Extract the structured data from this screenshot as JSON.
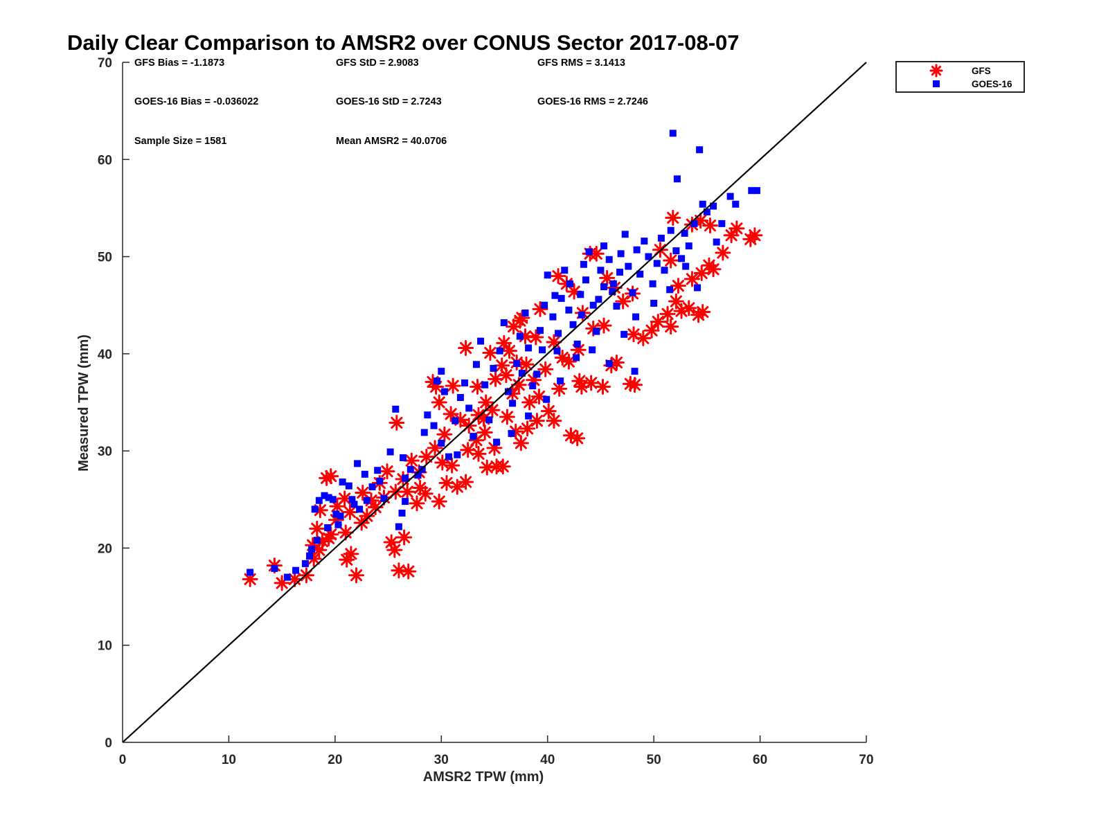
{
  "chart_data": {
    "type": "scatter",
    "title": "Daily Clear Comparison to AMSR2 over CONUS Sector 2017-08-07",
    "xlabel": "AMSR2 TPW (mm)",
    "ylabel": "Measured TPW (mm)",
    "xlim": [
      0,
      70
    ],
    "ylim": [
      0,
      70
    ],
    "xticks": [
      "0",
      "10",
      "20",
      "30",
      "40",
      "50",
      "60",
      "70"
    ],
    "yticks": [
      "0",
      "10",
      "20",
      "30",
      "40",
      "50",
      "60",
      "70"
    ],
    "grid": false,
    "legend_position": "outside-top-right",
    "reference_line": {
      "from": [
        0,
        0
      ],
      "to": [
        70,
        70
      ],
      "color": "#000000"
    },
    "stats": {
      "gfs_bias": "GFS Bias = -1.1873",
      "gfs_std": "GFS StD = 2.9083",
      "gfs_rms": "GFS RMS = 3.1413",
      "goes_bias": "GOES-16 Bias = -0.036022",
      "goes_std": "GOES-16 StD = 2.7243",
      "goes_rms": "GOES-16 RMS = 2.7246",
      "sample_size": "Sample Size = 1581",
      "mean_amsr2": "Mean AMSR2 = 40.0706"
    },
    "series": [
      {
        "name": "GFS",
        "marker": "asterisk",
        "color": "#ff0000",
        "points": [
          [
            12.0,
            16.8
          ],
          [
            14.3,
            18.2
          ],
          [
            15.0,
            16.4
          ],
          [
            16.2,
            16.8
          ],
          [
            17.3,
            17.2
          ],
          [
            18.0,
            18.9
          ],
          [
            18.5,
            19.8
          ],
          [
            19.2,
            27.2
          ],
          [
            19.6,
            27.4
          ],
          [
            18.3,
            22.0
          ],
          [
            18.6,
            23.9
          ],
          [
            19.6,
            21.4
          ],
          [
            20.2,
            24.3
          ],
          [
            21.1,
            18.8
          ],
          [
            21.5,
            19.4
          ],
          [
            22.0,
            17.2
          ],
          [
            21.0,
            21.6
          ],
          [
            22.5,
            22.6
          ],
          [
            23.0,
            23.3
          ],
          [
            23.8,
            24.2
          ],
          [
            24.6,
            25.2
          ],
          [
            25.3,
            20.6
          ],
          [
            25.6,
            19.8
          ],
          [
            25.8,
            32.9
          ],
          [
            26.0,
            17.7
          ],
          [
            26.9,
            17.6
          ],
          [
            26.5,
            21.1
          ],
          [
            26.8,
            25.8
          ],
          [
            27.7,
            24.6
          ],
          [
            28.5,
            25.6
          ],
          [
            29.2,
            37.1
          ],
          [
            29.5,
            36.6
          ],
          [
            29.8,
            24.8
          ],
          [
            30.5,
            26.7
          ],
          [
            31.5,
            26.3
          ],
          [
            32.3,
            26.8
          ],
          [
            31.0,
            28.5
          ],
          [
            32.5,
            30.1
          ],
          [
            33.5,
            29.7
          ],
          [
            34.3,
            28.3
          ],
          [
            35.2,
            28.4
          ],
          [
            35.8,
            28.4
          ],
          [
            32.3,
            40.6
          ],
          [
            33.5,
            33.7
          ],
          [
            34.1,
            31.9
          ],
          [
            34.8,
            34.2
          ],
          [
            35.0,
            30.3
          ],
          [
            36.2,
            33.5
          ],
          [
            37.0,
            32.0
          ],
          [
            37.5,
            30.8
          ],
          [
            37.4,
            43.4
          ],
          [
            37.6,
            43.7
          ],
          [
            38.1,
            32.3
          ],
          [
            38.3,
            35.0
          ],
          [
            39.0,
            33.1
          ],
          [
            39.2,
            35.6
          ],
          [
            40.1,
            34.1
          ],
          [
            40.6,
            33.1
          ],
          [
            41.1,
            36.4
          ],
          [
            42.2,
            31.6
          ],
          [
            42.8,
            31.3
          ],
          [
            43.2,
            36.6
          ],
          [
            43.0,
            37.2
          ],
          [
            44.1,
            37.0
          ],
          [
            45.2,
            36.6
          ],
          [
            46.0,
            38.8
          ],
          [
            46.5,
            39.1
          ],
          [
            47.8,
            36.9
          ],
          [
            48.2,
            36.8
          ],
          [
            48.1,
            42.0
          ],
          [
            49.0,
            41.6
          ],
          [
            49.8,
            42.4
          ],
          [
            50.4,
            43.3
          ],
          [
            51.3,
            44.1
          ],
          [
            51.6,
            42.8
          ],
          [
            52.1,
            45.4
          ],
          [
            52.6,
            44.4
          ],
          [
            53.3,
            44.7
          ],
          [
            54.2,
            44.0
          ],
          [
            54.6,
            44.3
          ],
          [
            53.6,
            47.7
          ],
          [
            54.5,
            48.3
          ],
          [
            55.2,
            49.1
          ],
          [
            55.6,
            48.7
          ],
          [
            56.5,
            50.4
          ],
          [
            57.3,
            52.2
          ],
          [
            57.8,
            52.9
          ],
          [
            59.1,
            51.8
          ],
          [
            59.5,
            52.2
          ],
          [
            51.8,
            54.0
          ],
          [
            53.6,
            53.3
          ],
          [
            54.4,
            53.7
          ],
          [
            55.3,
            53.2
          ],
          [
            50.6,
            50.7
          ],
          [
            51.6,
            49.6
          ],
          [
            52.3,
            47.0
          ],
          [
            44.0,
            50.3
          ],
          [
            44.6,
            50.3
          ],
          [
            45.6,
            47.8
          ],
          [
            46.3,
            46.8
          ],
          [
            47.1,
            45.4
          ],
          [
            48.0,
            46.2
          ],
          [
            41.0,
            48.0
          ],
          [
            41.8,
            47.2
          ],
          [
            42.5,
            46.4
          ],
          [
            43.3,
            44.2
          ],
          [
            44.3,
            42.6
          ],
          [
            45.3,
            42.9
          ],
          [
            38.9,
            41.7
          ],
          [
            39.3,
            44.6
          ],
          [
            40.6,
            41.2
          ],
          [
            41.4,
            39.6
          ],
          [
            42.0,
            39.2
          ],
          [
            42.9,
            40.4
          ],
          [
            36.1,
            37.8
          ],
          [
            36.7,
            35.9
          ],
          [
            37.3,
            36.8
          ],
          [
            38.0,
            38.9
          ],
          [
            38.7,
            37.3
          ],
          [
            39.8,
            38.4
          ],
          [
            33.4,
            36.6
          ],
          [
            34.2,
            35.0
          ],
          [
            35.1,
            37.4
          ],
          [
            35.7,
            38.8
          ],
          [
            36.4,
            40.3
          ],
          [
            37.1,
            39.1
          ],
          [
            30.3,
            31.7
          ],
          [
            30.9,
            33.8
          ],
          [
            31.8,
            33.2
          ],
          [
            32.6,
            32.6
          ],
          [
            33.3,
            31.1
          ],
          [
            34.0,
            33.3
          ],
          [
            27.2,
            29.0
          ],
          [
            27.9,
            27.8
          ],
          [
            28.6,
            29.4
          ],
          [
            29.4,
            30.3
          ],
          [
            30.1,
            28.8
          ],
          [
            28.0,
            26.2
          ],
          [
            24.2,
            26.7
          ],
          [
            24.9,
            27.9
          ],
          [
            25.7,
            25.8
          ],
          [
            26.4,
            27.1
          ],
          [
            23.4,
            24.9
          ],
          [
            22.6,
            25.7
          ],
          [
            21.4,
            23.7
          ],
          [
            20.9,
            25.1
          ],
          [
            20.1,
            22.9
          ],
          [
            19.4,
            21.0
          ],
          [
            18.8,
            20.7
          ],
          [
            17.9,
            20.3
          ],
          [
            36.8,
            42.8
          ],
          [
            37.9,
            41.8
          ],
          [
            35.9,
            41.1
          ],
          [
            34.6,
            40.1
          ],
          [
            31.1,
            36.7
          ],
          [
            29.8,
            35.0
          ]
        ]
      },
      {
        "name": "GOES-16",
        "marker": "square",
        "color": "#0000ff",
        "points": [
          [
            12.0,
            17.5
          ],
          [
            14.3,
            17.9
          ],
          [
            15.5,
            17.0
          ],
          [
            16.3,
            17.7
          ],
          [
            17.2,
            18.4
          ],
          [
            17.8,
            19.9
          ],
          [
            18.1,
            24.0
          ],
          [
            18.5,
            24.9
          ],
          [
            19.0,
            25.4
          ],
          [
            19.4,
            25.2
          ],
          [
            19.8,
            25.0
          ],
          [
            20.1,
            23.5
          ],
          [
            20.3,
            22.4
          ],
          [
            20.7,
            26.8
          ],
          [
            21.3,
            26.4
          ],
          [
            21.6,
            25.0
          ],
          [
            22.3,
            24.0
          ],
          [
            22.1,
            28.7
          ],
          [
            22.8,
            27.6
          ],
          [
            23.5,
            26.3
          ],
          [
            24.0,
            28.0
          ],
          [
            24.6,
            25.1
          ],
          [
            25.2,
            29.9
          ],
          [
            25.7,
            34.3
          ],
          [
            26.0,
            22.2
          ],
          [
            26.3,
            23.6
          ],
          [
            26.6,
            24.8
          ],
          [
            26.4,
            29.3
          ],
          [
            27.1,
            28.1
          ],
          [
            27.8,
            27.5
          ],
          [
            28.4,
            31.9
          ],
          [
            28.7,
            33.7
          ],
          [
            29.3,
            32.6
          ],
          [
            29.6,
            37.2
          ],
          [
            30.0,
            38.2
          ],
          [
            30.3,
            36.1
          ],
          [
            30.7,
            29.4
          ],
          [
            31.3,
            33.1
          ],
          [
            31.8,
            35.5
          ],
          [
            32.2,
            37.0
          ],
          [
            32.6,
            34.4
          ],
          [
            33.3,
            38.9
          ],
          [
            33.7,
            41.3
          ],
          [
            34.1,
            36.8
          ],
          [
            34.5,
            33.2
          ],
          [
            34.9,
            38.5
          ],
          [
            35.5,
            40.3
          ],
          [
            35.9,
            43.2
          ],
          [
            36.3,
            36.1
          ],
          [
            36.7,
            34.9
          ],
          [
            37.1,
            39.0
          ],
          [
            37.4,
            41.8
          ],
          [
            37.9,
            44.2
          ],
          [
            38.2,
            40.6
          ],
          [
            38.6,
            36.7
          ],
          [
            39.0,
            37.9
          ],
          [
            39.3,
            42.4
          ],
          [
            39.7,
            45.0
          ],
          [
            40.0,
            48.1
          ],
          [
            40.5,
            43.8
          ],
          [
            40.9,
            40.3
          ],
          [
            41.3,
            45.7
          ],
          [
            41.6,
            48.6
          ],
          [
            42.1,
            47.2
          ],
          [
            42.4,
            43.0
          ],
          [
            42.8,
            41.0
          ],
          [
            43.1,
            46.1
          ],
          [
            43.4,
            49.2
          ],
          [
            43.9,
            50.5
          ],
          [
            44.3,
            45.0
          ],
          [
            44.6,
            42.3
          ],
          [
            45.0,
            48.6
          ],
          [
            45.3,
            51.1
          ],
          [
            45.8,
            49.7
          ],
          [
            46.1,
            46.4
          ],
          [
            46.5,
            44.9
          ],
          [
            46.9,
            50.3
          ],
          [
            47.3,
            52.3
          ],
          [
            47.6,
            49.0
          ],
          [
            48.0,
            46.3
          ],
          [
            48.3,
            43.8
          ],
          [
            48.7,
            48.2
          ],
          [
            49.1,
            51.6
          ],
          [
            49.5,
            50.0
          ],
          [
            49.9,
            47.2
          ],
          [
            50.3,
            49.3
          ],
          [
            50.7,
            51.9
          ],
          [
            51.0,
            48.6
          ],
          [
            51.6,
            52.7
          ],
          [
            52.1,
            50.6
          ],
          [
            52.6,
            49.8
          ],
          [
            52.9,
            52.4
          ],
          [
            53.3,
            51.1
          ],
          [
            53.8,
            53.4
          ],
          [
            54.1,
            46.8
          ],
          [
            54.6,
            55.4
          ],
          [
            55.0,
            54.6
          ],
          [
            55.6,
            55.2
          ],
          [
            55.9,
            51.5
          ],
          [
            56.4,
            53.4
          ],
          [
            57.2,
            56.2
          ],
          [
            57.7,
            55.4
          ],
          [
            59.2,
            56.8
          ],
          [
            59.7,
            56.8
          ],
          [
            51.8,
            62.7
          ],
          [
            54.3,
            61.0
          ],
          [
            52.2,
            58.0
          ],
          [
            48.2,
            38.2
          ],
          [
            45.8,
            39.0
          ],
          [
            44.2,
            40.4
          ],
          [
            47.2,
            42.0
          ],
          [
            50.0,
            45.2
          ],
          [
            51.5,
            46.6
          ],
          [
            53.0,
            49.0
          ],
          [
            39.9,
            35.3
          ],
          [
            41.2,
            37.2
          ],
          [
            42.7,
            39.6
          ],
          [
            38.2,
            33.6
          ],
          [
            36.6,
            31.8
          ],
          [
            35.2,
            30.9
          ],
          [
            33.0,
            31.5
          ],
          [
            31.5,
            29.6
          ],
          [
            30.0,
            30.8
          ],
          [
            28.2,
            28.1
          ],
          [
            26.6,
            27.2
          ],
          [
            24.2,
            26.9
          ],
          [
            23.0,
            24.9
          ],
          [
            21.8,
            24.5
          ],
          [
            20.5,
            23.3
          ],
          [
            19.3,
            22.1
          ],
          [
            18.3,
            20.8
          ],
          [
            17.6,
            19.2
          ],
          [
            40.7,
            46.0
          ],
          [
            42.0,
            44.5
          ],
          [
            43.6,
            47.6
          ],
          [
            45.3,
            46.9
          ],
          [
            46.8,
            48.4
          ],
          [
            48.4,
            50.7
          ],
          [
            37.6,
            38.0
          ],
          [
            39.5,
            40.4
          ],
          [
            41.0,
            42.1
          ],
          [
            43.2,
            44.0
          ],
          [
            44.8,
            45.6
          ],
          [
            46.2,
            47.2
          ]
        ]
      }
    ]
  }
}
